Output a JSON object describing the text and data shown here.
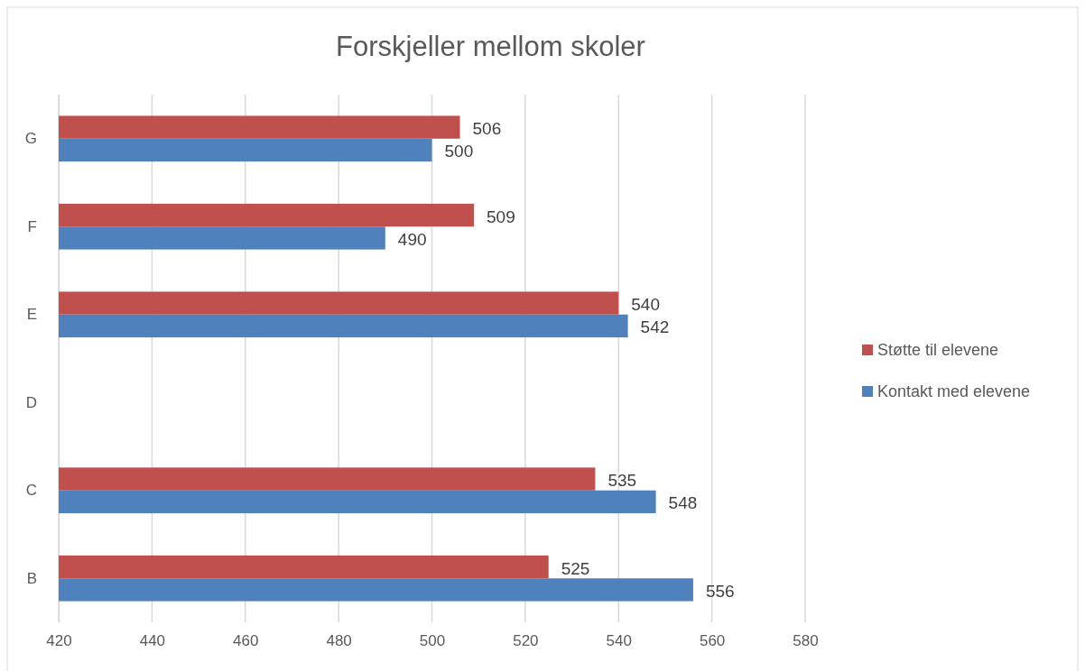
{
  "chart_data": {
    "type": "bar",
    "orientation": "horizontal",
    "title": "Forskjeller mellom skoler",
    "categories": [
      "G",
      "F",
      "E",
      "D",
      "C",
      "B"
    ],
    "series": [
      {
        "name": "Støtte til elevene",
        "color": "#c0504d",
        "values": [
          506,
          509,
          540,
          null,
          535,
          525
        ]
      },
      {
        "name": "Kontakt med elevene",
        "color": "#4f81bd",
        "values": [
          500,
          490,
          542,
          null,
          548,
          556
        ]
      }
    ],
    "xlim": [
      420,
      580
    ],
    "xticks": [
      420,
      440,
      460,
      480,
      500,
      520,
      540,
      560,
      580
    ],
    "grid": "x",
    "legend": "right",
    "data_labels": true
  }
}
